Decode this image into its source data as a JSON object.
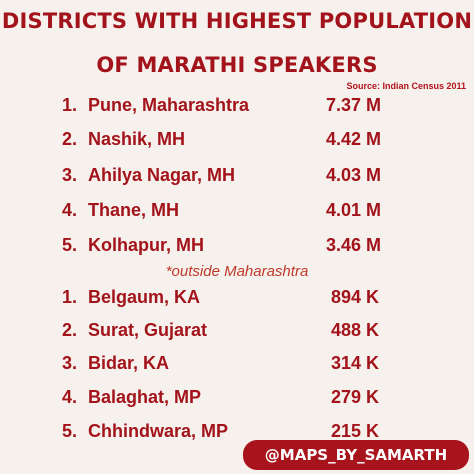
{
  "title": {
    "line1": "Districts with highest population",
    "line2": "of Marathi speakers"
  },
  "source": "Source: Indian Census 2011",
  "maharashtra_list": [
    {
      "rank": "1.",
      "name": "Pune, Maharashtra",
      "value": "7.37 M"
    },
    {
      "rank": "2.",
      "name": "Nashik, MH",
      "value": "4.42 M"
    },
    {
      "rank": "3.",
      "name": "Ahilya Nagar, MH",
      "value": "4.03 M"
    },
    {
      "rank": "4.",
      "name": "Thane, MH",
      "value": "4.01 M"
    },
    {
      "rank": "5.",
      "name": "Kolhapur, MH",
      "value": "3.46 M"
    }
  ],
  "outside_label": "*outside Maharashtra",
  "outside_list": [
    {
      "rank": "1.",
      "name": "Belgaum, KA",
      "value": "894 K"
    },
    {
      "rank": "2.",
      "name": "Surat, Gujarat",
      "value": "488 K"
    },
    {
      "rank": "3.",
      "name": "Bidar, KA",
      "value": "314 K"
    },
    {
      "rank": "4.",
      "name": "Balaghat, MP",
      "value": "279 K"
    },
    {
      "rank": "5.",
      "name": "Chhindwara, MP",
      "value": "215 K"
    }
  ],
  "handle": "@MAPS_BY_SAMARTH",
  "colors": {
    "accent": "#a3131b",
    "background": "#f6f1ec"
  }
}
